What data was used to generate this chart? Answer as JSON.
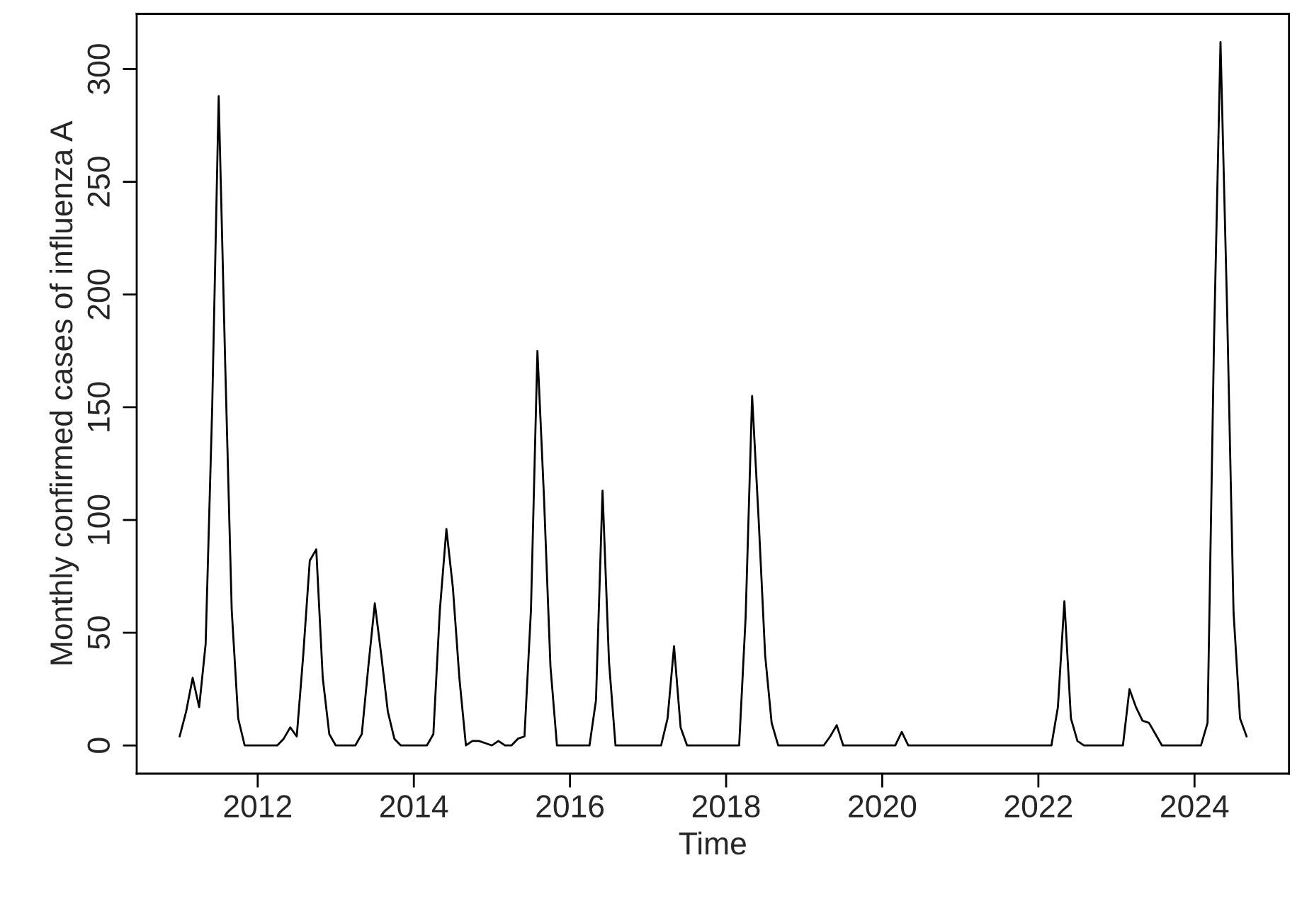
{
  "chart_data": {
    "type": "line",
    "xlabel": "Time",
    "ylabel": "Monthly confirmed cases of influenza A",
    "xlim": [
      2010.45,
      2025.21
    ],
    "ylim": [
      -12.5,
      324.5
    ],
    "xticks": [
      2012,
      2014,
      2016,
      2018,
      2020,
      2022,
      2024
    ],
    "yticks": [
      0,
      50,
      100,
      150,
      200,
      250,
      300
    ],
    "grid": false,
    "legend": false,
    "marker": "none",
    "line_style": "solid",
    "x": [
      2011.0,
      2011.083,
      2011.167,
      2011.25,
      2011.333,
      2011.417,
      2011.5,
      2011.583,
      2011.667,
      2011.75,
      2011.833,
      2011.917,
      2012.0,
      2012.083,
      2012.167,
      2012.25,
      2012.333,
      2012.417,
      2012.5,
      2012.583,
      2012.667,
      2012.75,
      2012.833,
      2012.917,
      2013.0,
      2013.083,
      2013.167,
      2013.25,
      2013.333,
      2013.417,
      2013.5,
      2013.583,
      2013.667,
      2013.75,
      2013.833,
      2013.917,
      2014.0,
      2014.083,
      2014.167,
      2014.25,
      2014.333,
      2014.417,
      2014.5,
      2014.583,
      2014.667,
      2014.75,
      2014.833,
      2014.917,
      2015.0,
      2015.083,
      2015.167,
      2015.25,
      2015.333,
      2015.417,
      2015.5,
      2015.583,
      2015.667,
      2015.75,
      2015.833,
      2015.917,
      2016.0,
      2016.083,
      2016.167,
      2016.25,
      2016.333,
      2016.417,
      2016.5,
      2016.583,
      2016.667,
      2016.75,
      2016.833,
      2016.917,
      2017.0,
      2017.083,
      2017.167,
      2017.25,
      2017.333,
      2017.417,
      2017.5,
      2017.583,
      2017.667,
      2017.75,
      2017.833,
      2017.917,
      2018.0,
      2018.083,
      2018.167,
      2018.25,
      2018.333,
      2018.417,
      2018.5,
      2018.583,
      2018.667,
      2018.75,
      2018.833,
      2018.917,
      2019.0,
      2019.083,
      2019.167,
      2019.25,
      2019.333,
      2019.417,
      2019.5,
      2019.583,
      2019.667,
      2019.75,
      2019.833,
      2019.917,
      2020.0,
      2020.083,
      2020.167,
      2020.25,
      2020.333,
      2020.417,
      2020.5,
      2020.583,
      2020.667,
      2020.75,
      2020.833,
      2020.917,
      2021.0,
      2021.083,
      2021.167,
      2021.25,
      2021.333,
      2021.417,
      2021.5,
      2021.583,
      2021.667,
      2021.75,
      2021.833,
      2021.917,
      2022.0,
      2022.083,
      2022.167,
      2022.25,
      2022.333,
      2022.417,
      2022.5,
      2022.583,
      2022.667,
      2022.75,
      2022.833,
      2022.917,
      2023.0,
      2023.083,
      2023.167,
      2023.25,
      2023.333,
      2023.417,
      2023.5,
      2023.583,
      2023.667,
      2023.75,
      2023.833,
      2023.917,
      2024.0,
      2024.083,
      2024.167,
      2024.25,
      2024.333,
      2024.417,
      2024.5,
      2024.583,
      2024.667
    ],
    "series": [
      {
        "color": "#000000",
        "values": [
          4,
          15,
          30,
          17,
          45,
          150,
          288,
          170,
          60,
          12,
          0,
          0,
          0,
          0,
          0,
          0,
          3,
          8,
          4,
          40,
          82,
          87,
          30,
          5,
          0,
          0,
          0,
          0,
          5,
          35,
          63,
          40,
          15,
          3,
          0,
          0,
          0,
          0,
          0,
          5,
          60,
          96,
          70,
          30,
          0,
          2,
          2,
          1,
          0,
          2,
          0,
          0,
          3,
          4,
          60,
          175,
          110,
          35,
          0,
          0,
          0,
          0,
          0,
          0,
          20,
          113,
          37,
          0,
          0,
          0,
          0,
          0,
          0,
          0,
          0,
          12,
          44,
          8,
          0,
          0,
          0,
          0,
          0,
          0,
          0,
          0,
          0,
          57,
          155,
          100,
          40,
          10,
          0,
          0,
          0,
          0,
          0,
          0,
          0,
          0,
          4,
          9,
          0,
          0,
          0,
          0,
          0,
          0,
          0,
          0,
          0,
          6,
          0,
          0,
          0,
          0,
          0,
          0,
          0,
          0,
          0,
          0,
          0,
          0,
          0,
          0,
          0,
          0,
          0,
          0,
          0,
          0,
          0,
          0,
          0,
          17,
          64,
          12,
          2,
          0,
          0,
          0,
          0,
          0,
          0,
          0,
          25,
          17,
          11,
          10,
          5,
          0,
          0,
          0,
          0,
          0,
          0,
          0,
          10,
          180,
          312,
          194,
          59,
          12,
          4
        ]
      }
    ]
  }
}
